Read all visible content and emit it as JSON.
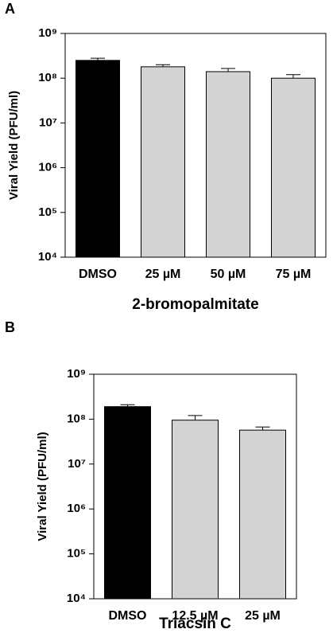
{
  "chart_data": [
    {
      "type": "bar",
      "panel_label": "A",
      "y_label": "Viral Yield (PFU/ml)",
      "x_label": "2-bromopalmitate",
      "categories": [
        "DMSO",
        "25 µM",
        "50 µM",
        "75 µM"
      ],
      "values": [
        250000000,
        180000000,
        140000000,
        100000000
      ],
      "errors": [
        30000000,
        20000000,
        25000000,
        20000000
      ],
      "colors": [
        "#000000",
        "#d3d3d3",
        "#d3d3d3",
        "#d3d3d3"
      ],
      "log_scale": true,
      "ylim": [
        10000,
        1000000000
      ],
      "yticks": [
        {
          "value": 10000,
          "label": "10⁴"
        },
        {
          "value": 100000,
          "label": "10⁵"
        },
        {
          "value": 1000000,
          "label": "10⁶"
        },
        {
          "value": 10000000,
          "label": "10⁷"
        },
        {
          "value": 100000000,
          "label": "10⁸"
        },
        {
          "value": 1000000000,
          "label": "10⁹"
        }
      ]
    },
    {
      "type": "bar",
      "panel_label": "B",
      "y_label": "Viral Yield (PFU/ml)",
      "x_label": "Triacsin C",
      "categories": [
        "DMSO",
        "12.5 µM",
        "25 µM"
      ],
      "values": [
        190000000,
        95000000,
        57000000
      ],
      "errors": [
        20000000,
        25000000,
        10000000
      ],
      "colors": [
        "#000000",
        "#d3d3d3",
        "#d3d3d3"
      ],
      "log_scale": true,
      "ylim": [
        10000,
        1000000000
      ],
      "yticks": [
        {
          "value": 10000,
          "label": "10⁴"
        },
        {
          "value": 100000,
          "label": "10⁵"
        },
        {
          "value": 1000000,
          "label": "10⁶"
        },
        {
          "value": 10000000,
          "label": "10⁷"
        },
        {
          "value": 100000000,
          "label": "10⁸"
        },
        {
          "value": 1000000000,
          "label": "10⁹"
        }
      ]
    }
  ]
}
